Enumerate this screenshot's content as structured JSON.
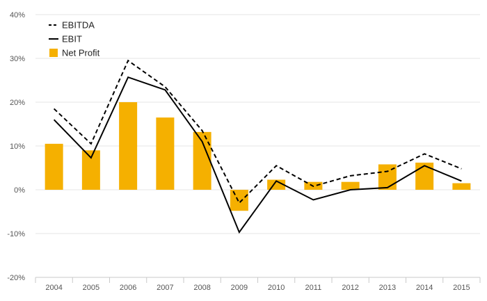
{
  "chart_data": {
    "type": "bar",
    "categories": [
      "2004",
      "2005",
      "2006",
      "2007",
      "2008",
      "2009",
      "2010",
      "2011",
      "2012",
      "2013",
      "2014",
      "2015"
    ],
    "series": [
      {
        "name": "EBITDA",
        "type": "line",
        "style": "dashed",
        "color": "#000000",
        "values": [
          18.5,
          10.5,
          29.5,
          23.5,
          13.5,
          -3.0,
          5.5,
          0.8,
          3.2,
          4.2,
          8.2,
          4.8
        ]
      },
      {
        "name": "EBIT",
        "type": "line",
        "style": "solid",
        "color": "#000000",
        "values": [
          16.0,
          7.3,
          25.7,
          22.8,
          11.0,
          -9.7,
          2.0,
          -2.3,
          0.0,
          0.5,
          5.5,
          2.0
        ]
      },
      {
        "name": "Net Profit",
        "type": "bar",
        "color": "#F5B000",
        "values": [
          10.5,
          9.0,
          20.0,
          16.5,
          13.2,
          -4.8,
          2.3,
          1.8,
          1.8,
          5.8,
          6.2,
          1.5
        ]
      }
    ],
    "y_ticks": [
      "-20%",
      "-10%",
      "0%",
      "10%",
      "20%",
      "30%",
      "40%"
    ],
    "ylim": [
      -20,
      40
    ],
    "title": "",
    "xlabel": "",
    "ylabel": "",
    "grid": true,
    "legend_position": "top-left"
  }
}
